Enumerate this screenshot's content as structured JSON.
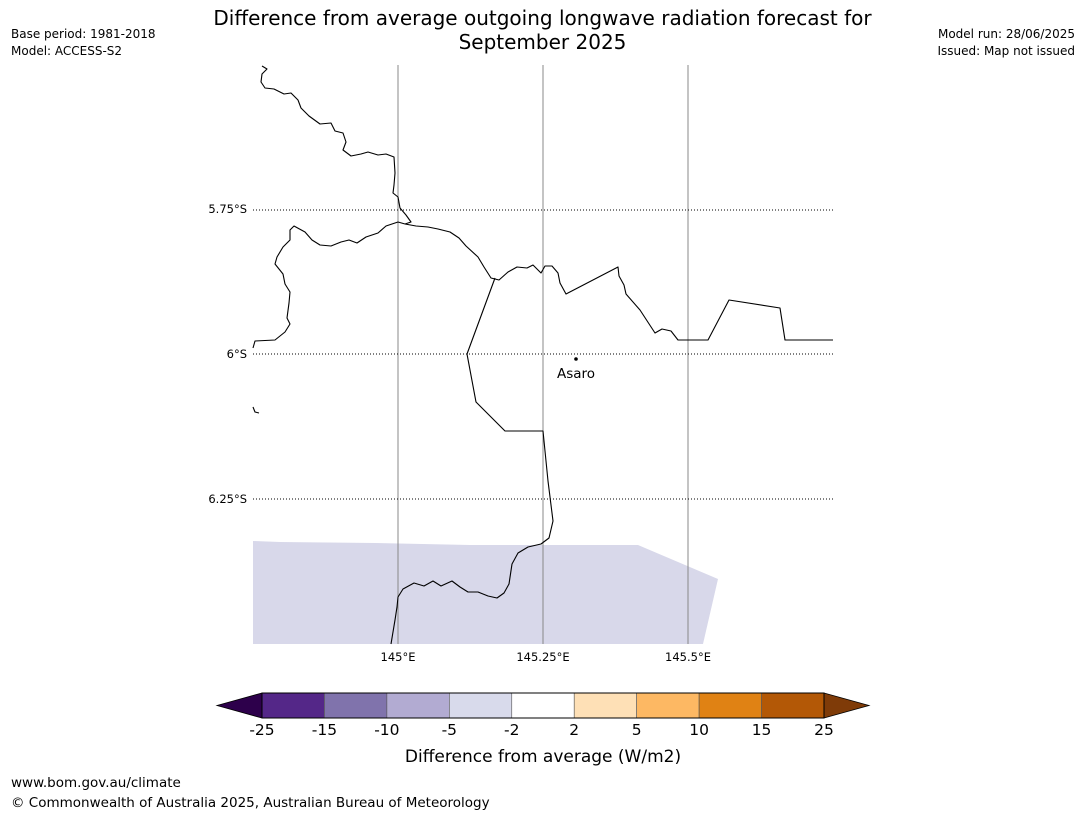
{
  "header": {
    "title_line1": "Difference from average outgoing longwave radiation forecast for",
    "title_line2": "September 2025",
    "base_period": "Base period: 1981-2018",
    "model": "Model: ACCESS-S2",
    "model_run": "Model run: 28/06/2025",
    "issued": "Issued: Map not issued"
  },
  "map": {
    "lat_labels": [
      "5.75°S",
      "6°S",
      "6.25°S"
    ],
    "lon_labels": [
      "145°E",
      "145.25°E",
      "145.5°E"
    ],
    "place": {
      "name": "Asaro"
    },
    "fill_color": "#d8d8ea",
    "boundary_color": "#000000"
  },
  "colorbar": {
    "label": "Difference from average (W/m2)",
    "ticks": [
      "-25",
      "-15",
      "-10",
      "-5",
      "-2",
      "2",
      "5",
      "10",
      "15",
      "25"
    ],
    "under_color": "#2d004b",
    "over_color": "#7f3b08",
    "colors": [
      "#542788",
      "#8073ac",
      "#b2abd2",
      "#d8daeb",
      "#ffffff",
      "#fee0b6",
      "#fdb863",
      "#e08214",
      "#b35806"
    ]
  },
  "footer": {
    "url": "www.bom.gov.au/climate",
    "copyright": "© Commonwealth of Australia 2025, Australian Bureau of Meteorology"
  }
}
